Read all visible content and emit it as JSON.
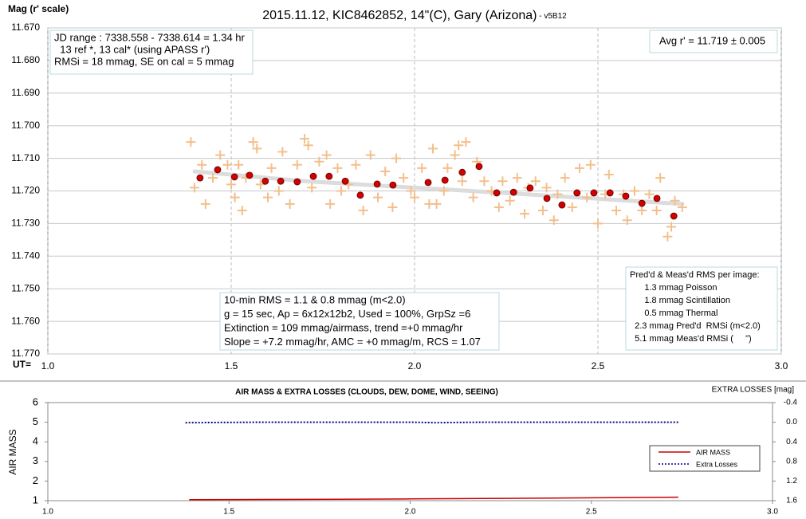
{
  "chart_data": [
    {
      "type": "scatter",
      "title": "2015.11.12, KIC8462852, 14\"(C), Gary (Arizona)",
      "subtitle": " - v5B12",
      "y_label": "Mag (r' scale)",
      "x_label": "UT=",
      "xlim": [
        1.0,
        3.0
      ],
      "xticks": [
        {
          "value": 1.0,
          "label": "1.0"
        },
        {
          "value": 1.5,
          "label": "1.5"
        },
        {
          "value": 2.0,
          "label": "2.0"
        },
        {
          "value": 2.5,
          "label": "2.5"
        },
        {
          "value": 3.0,
          "label": "3.0"
        }
      ],
      "ylim": [
        11.67,
        11.77
      ],
      "y_inverted": true,
      "yticks": [
        {
          "value": 11.67,
          "label": "11.670"
        },
        {
          "value": 11.68,
          "label": "11.680"
        },
        {
          "value": 11.69,
          "label": "11.690"
        },
        {
          "value": 11.7,
          "label": "11.700"
        },
        {
          "value": 11.71,
          "label": "11.710"
        },
        {
          "value": 11.72,
          "label": "11.720"
        },
        {
          "value": 11.73,
          "label": "11.730"
        },
        {
          "value": 11.74,
          "label": "11.740"
        },
        {
          "value": 11.75,
          "label": "11.750"
        },
        {
          "value": 11.76,
          "label": "11.760"
        },
        {
          "value": 11.77,
          "label": "11.770"
        }
      ],
      "grid": true,
      "color": "#f3bf8c",
      "x": [
        1.39,
        1.4,
        1.42,
        1.43,
        1.45,
        1.47,
        1.49,
        1.5,
        1.51,
        1.52,
        1.53,
        1.54,
        1.56,
        1.57,
        1.58,
        1.6,
        1.61,
        1.63,
        1.64,
        1.66,
        1.68,
        1.7,
        1.71,
        1.72,
        1.74,
        1.76,
        1.77,
        1.79,
        1.8,
        1.82,
        1.84,
        1.86,
        1.88,
        1.9,
        1.92,
        1.94,
        1.95,
        1.97,
        1.99,
        2.0,
        2.02,
        2.04,
        2.05,
        2.06,
        2.08,
        2.09,
        2.11,
        2.12,
        2.13,
        2.14,
        2.16,
        2.17,
        2.19,
        2.21,
        2.23,
        2.24,
        2.26,
        2.28,
        2.3,
        2.31,
        2.33,
        2.35,
        2.36,
        2.38,
        2.39,
        2.41,
        2.43,
        2.45,
        2.47,
        2.48,
        2.5,
        2.52,
        2.53,
        2.55,
        2.57,
        2.58,
        2.6,
        2.62,
        2.64,
        2.66,
        2.67,
        2.69,
        2.7,
        2.71,
        2.73
      ],
      "values": [
        11.705,
        11.719,
        11.712,
        11.724,
        11.716,
        11.709,
        11.712,
        11.718,
        11.722,
        11.712,
        11.726,
        11.716,
        11.705,
        11.707,
        11.718,
        11.722,
        11.713,
        11.72,
        11.708,
        11.724,
        11.712,
        11.704,
        11.706,
        11.719,
        11.711,
        11.709,
        11.724,
        11.713,
        11.72,
        11.718,
        11.712,
        11.726,
        11.709,
        11.722,
        11.714,
        11.725,
        11.71,
        11.716,
        11.72,
        11.722,
        11.713,
        11.724,
        11.707,
        11.724,
        11.72,
        11.713,
        11.709,
        11.706,
        11.717,
        11.705,
        11.722,
        11.711,
        11.717,
        11.72,
        11.725,
        11.717,
        11.723,
        11.716,
        11.727,
        11.719,
        11.717,
        11.726,
        11.719,
        11.729,
        11.721,
        11.716,
        11.725,
        11.713,
        11.722,
        11.712,
        11.73,
        11.721,
        11.715,
        11.726,
        11.721,
        11.729,
        11.72,
        11.726,
        11.721,
        11.726,
        11.716,
        11.734,
        11.731,
        11.723,
        11.725
      ],
      "avg_color": "#d40000",
      "avg_x": [
        1.415,
        1.463,
        1.509,
        1.55,
        1.593,
        1.635,
        1.68,
        1.724,
        1.767,
        1.811,
        1.852,
        1.898,
        1.941,
        2.037,
        2.083,
        2.13,
        2.176,
        2.224,
        2.27,
        2.315,
        2.361,
        2.402,
        2.443,
        2.489,
        2.533,
        2.576,
        2.62,
        2.661,
        2.707
      ],
      "avg_values": [
        11.716,
        11.7135,
        11.7157,
        11.7152,
        11.717,
        11.717,
        11.7172,
        11.7155,
        11.7155,
        11.717,
        11.7213,
        11.7179,
        11.7182,
        11.7174,
        11.7167,
        11.7143,
        11.7125,
        11.7206,
        11.7204,
        11.7191,
        11.7223,
        11.7243,
        11.7206,
        11.7206,
        11.7206,
        11.7216,
        11.7238,
        11.7223,
        11.7277
      ],
      "trend_color": "#dcdcdc",
      "trend_x": [
        1.4,
        1.7,
        2.0,
        2.3,
        2.73
      ],
      "trend_values": [
        11.714,
        11.717,
        11.719,
        11.721,
        11.724
      ],
      "annotations": [
        {
          "lines": [
            "JD range : 7338.558 - 7338.614 = 1.34 hr",
            "  13 ref *, 13 cal* (using APASS r')",
            "RMSi = 18 mmag, SE on cal = 5 mmag"
          ]
        },
        {
          "lines": [
            "Avg r' = 11.719 ± 0.005"
          ]
        },
        {
          "lines": [
            "10-min RMS = 1.1 & 0.8 mmag (m<2.0)",
            "g = 15 sec, Ap = 6x12x12b2, Used = 100%, GrpSz =6",
            "Extinction = 109 mmag/airmass, trend =+0 mmag/hr",
            "Slope = +7.2 mmag/hr, AMC = +0 mmag/m, RCS = 1.07"
          ]
        },
        {
          "lines": [
            "Pred'd & Meas'd RMS per image:",
            "      1.3 mmag Poisson",
            "      1.8 mmag Scintillation",
            "      0.5 mmag Thermal",
            "  2.3 mmag Pred'd  RMSi (m<2.0)",
            "  5.1 mmag Meas'd RMSi (     \")"
          ]
        }
      ]
    },
    {
      "type": "line",
      "title": "AIR MASS & EXTRA LOSSES (CLOUDS, DEW, DOME, WIND, SEEING)",
      "y_label": "AIR MASS",
      "y2_label": "EXTRA LOSSES [mag]",
      "xlim": [
        1.0,
        3.0
      ],
      "xticks": [
        {
          "value": 1.0,
          "label": "1.0"
        },
        {
          "value": 1.5,
          "label": "1.5"
        },
        {
          "value": 2.0,
          "label": "2.0"
        },
        {
          "value": 2.5,
          "label": "2.5"
        },
        {
          "value": 3.0,
          "label": "3.0"
        }
      ],
      "ylim": [
        1,
        6
      ],
      "yticks": [
        1,
        2,
        3,
        4,
        5,
        6
      ],
      "y2lim": [
        -0.4,
        1.6
      ],
      "y2_inverted": true,
      "y2ticks": [
        {
          "value": -0.4,
          "label": "-0.4"
        },
        {
          "value": 0.0,
          "label": "0.0"
        },
        {
          "value": 0.4,
          "label": "0.4"
        },
        {
          "value": 0.8,
          "label": "0.8"
        },
        {
          "value": 1.2,
          "label": "1.2"
        },
        {
          "value": 1.6,
          "label": "1.6"
        }
      ],
      "grid": false,
      "legend": "lower right",
      "series": [
        {
          "name": "AIR MASS",
          "color": "#cc0000",
          "x": [
            1.39,
            1.6,
            1.8,
            2.0,
            2.2,
            2.4,
            2.6,
            2.74
          ],
          "values": [
            1.05,
            1.06,
            1.07,
            1.09,
            1.11,
            1.13,
            1.16,
            1.18
          ]
        },
        {
          "name": "Extra Losses",
          "color": "#00008b",
          "axis": "y2",
          "dashed": true,
          "x": [
            1.38,
            1.6,
            1.8,
            2.0,
            2.07,
            2.2,
            2.4,
            2.6,
            2.74
          ],
          "values": [
            0.01,
            0.0,
            0.0,
            0.0,
            0.01,
            0.0,
            0.0,
            0.0,
            0.0
          ]
        }
      ]
    }
  ]
}
